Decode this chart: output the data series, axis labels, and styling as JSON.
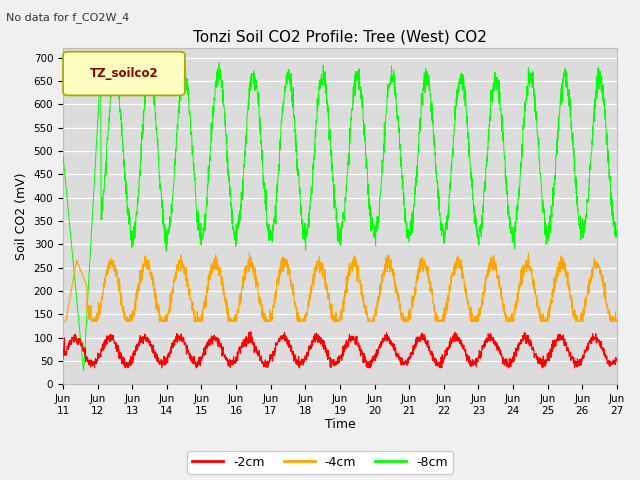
{
  "title": "Tonzi Soil CO2 Profile: Tree (West) CO2",
  "subtitle": "No data for f_CO2W_4",
  "ylabel": "Soil CO2 (mV)",
  "xlabel": "Time",
  "legend_label": "TZ_soilco2",
  "ylim": [
    0,
    720
  ],
  "yticks": [
    0,
    50,
    100,
    150,
    200,
    250,
    300,
    350,
    400,
    450,
    500,
    550,
    600,
    650,
    700
  ],
  "fig_bg": "#f0f0f0",
  "plot_bg": "#dcdcdc",
  "line_2cm_color": "#ff0000",
  "line_4cm_color": "#ffa500",
  "line_8cm_color": "#00ff00",
  "legend_entries": [
    "-2cm",
    "-4cm",
    "-8cm"
  ],
  "x_start": 11.0,
  "x_end": 27.0,
  "xtick_positions": [
    11,
    12,
    13,
    14,
    15,
    16,
    17,
    18,
    19,
    20,
    21,
    22,
    23,
    24,
    25,
    26,
    27
  ],
  "xtick_labels": [
    "Jun\n11",
    "Jun\n12",
    "Jun\n13",
    "Jun\n14",
    "Jun\n15",
    "Jun\n16",
    "Jun\n17",
    "Jun\n18",
    "Jun\n19",
    "Jun\n20",
    "Jun\n21",
    "Jun\n22",
    "Jun\n23",
    "Jun\n24",
    "Jun\n25",
    "Jun\n26",
    "Jun\n27"
  ],
  "legend_box_face": "#ffffc0",
  "legend_box_edge": "#aaaa00",
  "legend_text_color": "#8B0000"
}
